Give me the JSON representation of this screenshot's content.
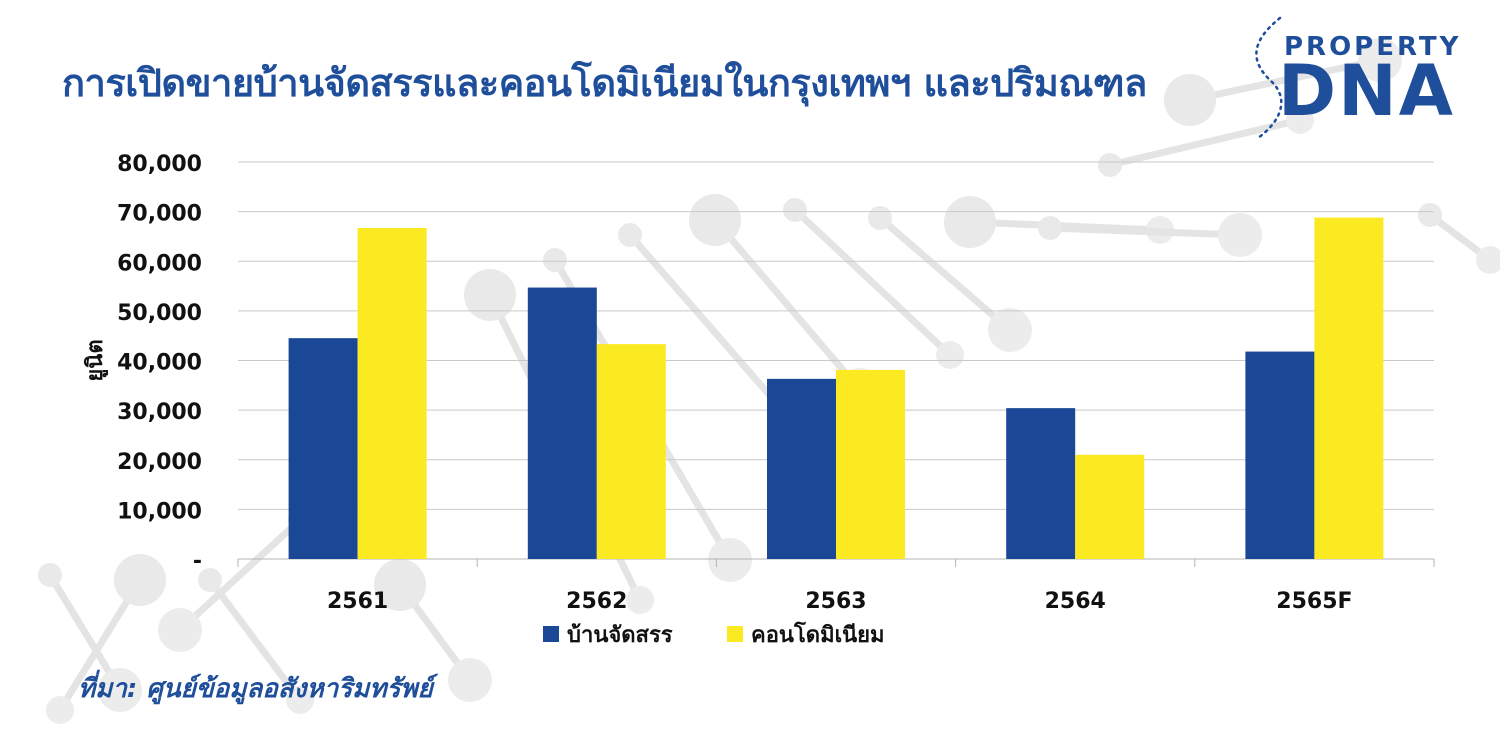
{
  "header": {
    "title": "การเปิดขายบ้านจัดสรรและคอนโดมิเนียมในกรุงเทพฯ และปริมณฑล",
    "logo_top": "PROPERTY",
    "logo_main": "DNA"
  },
  "source": "ที่มา: ศูนย์ข้อมูลอสังหาริมทรัพย์",
  "colors": {
    "brand": "#1f4e9a",
    "series_house": "#1a4796",
    "series_condo": "#fbe922"
  },
  "chart_data": {
    "type": "bar",
    "title": "",
    "xlabel": "",
    "ylabel": "ยูนิต",
    "ylim": [
      0,
      80000
    ],
    "yticks": [
      0,
      10000,
      20000,
      30000,
      40000,
      50000,
      60000,
      70000,
      80000
    ],
    "ytick_labels": [
      "-",
      "10,000",
      "20,000",
      "30,000",
      "40,000",
      "50,000",
      "60,000",
      "70,000",
      "80,000"
    ],
    "categories": [
      "2561",
      "2562",
      "2563",
      "2564",
      "2565F"
    ],
    "series": [
      {
        "name": "บ้านจัดสรร",
        "values": [
          44500,
          54700,
          36300,
          30400,
          41800
        ]
      },
      {
        "name": "คอนโดมิเนียม",
        "values": [
          66700,
          43300,
          38100,
          21000,
          68800
        ]
      }
    ],
    "grid": true,
    "legend": "bottom"
  }
}
